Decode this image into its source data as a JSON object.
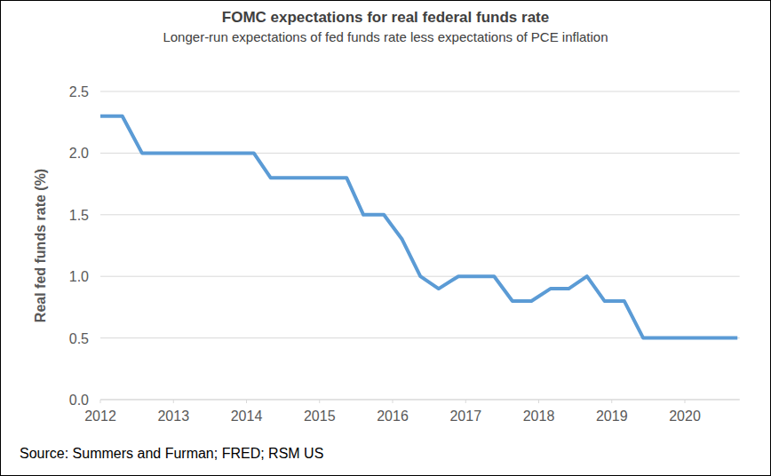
{
  "chart_data": {
    "type": "line",
    "title": "FOMC expectations for real federal funds rate",
    "subtitle": "Longer-run expectations of fed funds rate less expectations of PCE inflation",
    "ylabel": "Real fed funds rate (%)",
    "source": "Source: Summers and Furman; FRED; RSM US",
    "x": [
      2012.0,
      2012.3,
      2012.57,
      2014.1,
      2014.33,
      2015.37,
      2015.6,
      2015.88,
      2016.13,
      2016.38,
      2016.63,
      2016.9,
      2017.39,
      2017.64,
      2017.9,
      2018.16,
      2018.41,
      2018.66,
      2018.9,
      2019.17,
      2019.43,
      2020.72
    ],
    "values": [
      2.3,
      2.3,
      2.0,
      2.0,
      1.8,
      1.8,
      1.5,
      1.5,
      1.3,
      1.0,
      0.9,
      1.0,
      1.0,
      0.8,
      0.8,
      0.9,
      0.9,
      1.0,
      0.8,
      0.8,
      0.5,
      0.5
    ],
    "color": "#5b9bd5",
    "xlim": [
      2012,
      2020.75
    ],
    "xticks": [
      2012,
      2013,
      2014,
      2015,
      2016,
      2017,
      2018,
      2019,
      2020
    ],
    "ylim": [
      0,
      2.5
    ],
    "yticks": [
      {
        "value": 0,
        "label": "0.0"
      },
      0.5,
      {
        "value": 1,
        "label": "1.0"
      },
      1.5,
      {
        "value": 2,
        "label": "2.0"
      },
      2.5
    ],
    "grid": true
  }
}
